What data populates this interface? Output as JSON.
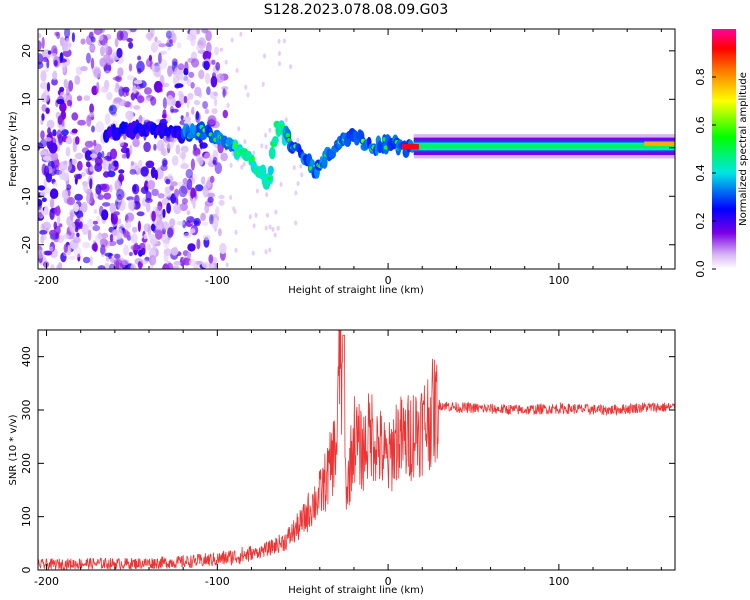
{
  "figure_title": "S128.2023.078.08.09.G03",
  "chart_data": [
    {
      "type": "heatmap",
      "title": "",
      "xlabel": "Height of straight line (km)",
      "ylabel": "Frequency (Hz)",
      "xlim": [
        -205,
        168
      ],
      "ylim": [
        -25,
        24.5
      ],
      "xticks": [
        -200,
        -100,
        0,
        100
      ],
      "yticks": [
        -20,
        -10,
        0,
        10,
        20
      ],
      "colorbar": {
        "label": "Normalized spectral amplitude",
        "range": [
          0.0,
          1.0
        ],
        "ticks": [
          0.0,
          0.2,
          0.4,
          0.6,
          0.8
        ]
      },
      "ridge": {
        "description_points_x": [
          -165,
          -140,
          -120,
          -110,
          -100,
          -90,
          -80,
          -70,
          -65,
          -58,
          -50,
          -42,
          -35,
          -28,
          -20,
          -10,
          0,
          10,
          20,
          50,
          100,
          150,
          168
        ],
        "description_points_y": [
          3,
          4,
          3,
          3.5,
          2,
          0,
          -3,
          -7,
          4.5,
          1.5,
          -1,
          -5,
          -1,
          1,
          3,
          0,
          1,
          0,
          0,
          0,
          0.5,
          1,
          1
        ]
      }
    },
    {
      "type": "line",
      "title": "",
      "xlabel": "Height of straight line (km)",
      "ylabel": "SNR (10 * v/v)",
      "xlim": [
        -205,
        168
      ],
      "ylim": [
        0,
        450
      ],
      "xticks": [
        -200,
        -100,
        0,
        100
      ],
      "yticks": [
        0,
        100,
        200,
        300,
        400
      ],
      "series": [
        {
          "name": "SNR",
          "color": "#ee3333",
          "x": [
            -205,
            -180,
            -150,
            -120,
            -100,
            -80,
            -70,
            -60,
            -50,
            -45,
            -40,
            -35,
            -30,
            -28,
            -26,
            -24,
            -20,
            -15,
            -10,
            -5,
            0,
            5,
            10,
            15,
            20,
            25,
            30,
            40,
            60,
            80,
            100,
            130,
            150,
            168
          ],
          "y": [
            10,
            12,
            12,
            15,
            20,
            30,
            40,
            55,
            90,
            120,
            140,
            180,
            240,
            440,
            200,
            150,
            250,
            220,
            260,
            230,
            200,
            250,
            240,
            260,
            270,
            290,
            310,
            305,
            302,
            300,
            303,
            300,
            305,
            305
          ]
        }
      ]
    }
  ]
}
